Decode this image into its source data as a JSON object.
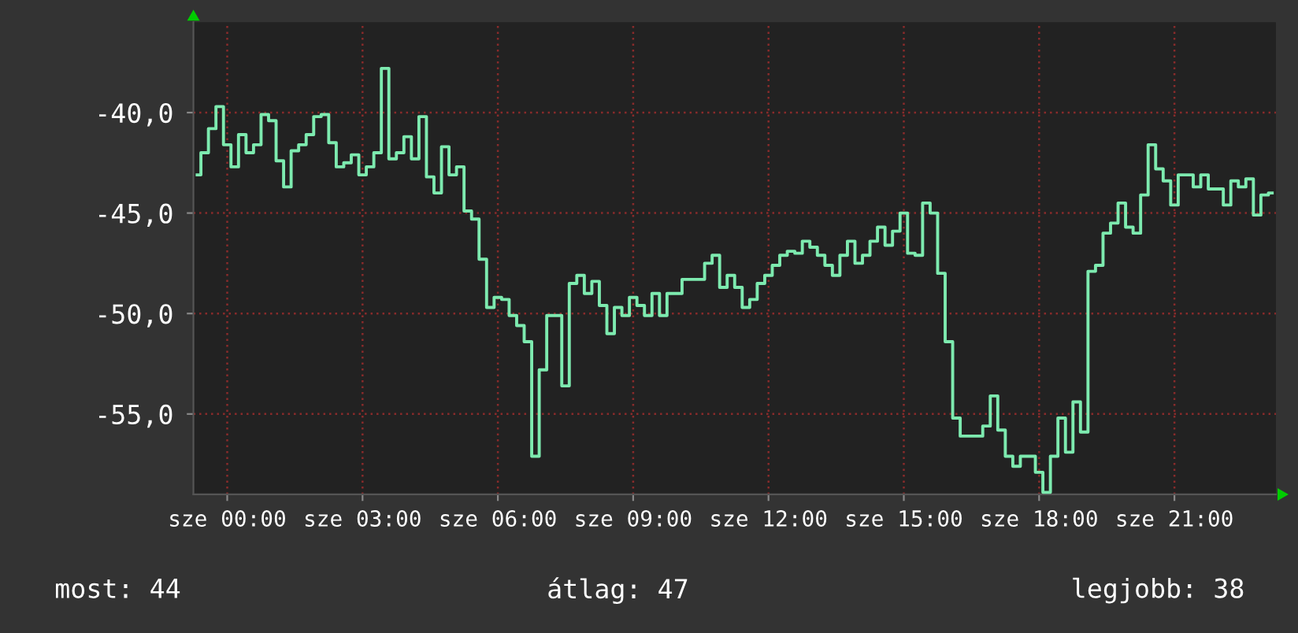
{
  "chart_data": {
    "type": "step",
    "categories": [
      null,
      null,
      null,
      null,
      "sze 00:00",
      null,
      null,
      null,
      null,
      null,
      null,
      null,
      null,
      null,
      null,
      null,
      null,
      null,
      null,
      null,
      null,
      null,
      "sze 03:00",
      null,
      null,
      null,
      null,
      null,
      null,
      null,
      null,
      null,
      null,
      null,
      null,
      null,
      null,
      null,
      null,
      null,
      "sze 06:00",
      null,
      null,
      null,
      null,
      null,
      null,
      null,
      null,
      null,
      null,
      null,
      null,
      null,
      null,
      null,
      null,
      null,
      "sze 09:00",
      null,
      null,
      null,
      null,
      null,
      null,
      null,
      null,
      null,
      null,
      null,
      null,
      null,
      null,
      null,
      null,
      null,
      "sze 12:00",
      null,
      null,
      null,
      null,
      null,
      null,
      null,
      null,
      null,
      null,
      null,
      null,
      null,
      null,
      null,
      null,
      null,
      "sze 15:00",
      null,
      null,
      null,
      null,
      null,
      null,
      null,
      null,
      null,
      null,
      null,
      null,
      null,
      null,
      null,
      null,
      null,
      "sze 18:00",
      null,
      null,
      null,
      null,
      null,
      null,
      null,
      null,
      null,
      null,
      null,
      null,
      null,
      null,
      null,
      null,
      null,
      "sze 21:00",
      null,
      null,
      null,
      null,
      null,
      null,
      null,
      null,
      null,
      null,
      null,
      null,
      null
    ],
    "series": [
      {
        "color": "#7deaaf",
        "values": [
          -43.1,
          -42.0,
          -40.8,
          -39.7,
          -41.6,
          -42.7,
          -41.1,
          -42.0,
          -41.6,
          -40.1,
          -40.4,
          -42.4,
          -43.7,
          -41.9,
          -41.6,
          -41.1,
          -40.2,
          -40.1,
          -41.5,
          -42.7,
          -42.5,
          -42.1,
          -43.1,
          -42.7,
          -42.0,
          -37.8,
          -42.3,
          -42.0,
          -41.2,
          -42.3,
          -40.2,
          -43.2,
          -44.0,
          -41.7,
          -43.1,
          -42.7,
          -44.9,
          -45.3,
          -47.3,
          -49.7,
          -49.2,
          -49.3,
          -50.1,
          -50.6,
          -51.4,
          -57.1,
          -52.8,
          -50.1,
          -50.1,
          -53.6,
          -48.5,
          -48.1,
          -49.0,
          -48.4,
          -49.6,
          -51.0,
          -49.7,
          -50.1,
          -49.2,
          -49.6,
          -50.1,
          -49.0,
          -50.1,
          -49.0,
          -49.0,
          -48.3,
          -48.3,
          -48.3,
          -47.5,
          -47.1,
          -48.7,
          -48.1,
          -48.7,
          -49.7,
          -49.3,
          -48.5,
          -48.1,
          -47.6,
          -47.1,
          -46.9,
          -47.0,
          -46.4,
          -46.7,
          -47.1,
          -47.6,
          -48.1,
          -47.1,
          -46.4,
          -47.5,
          -47.1,
          -46.4,
          -45.7,
          -46.6,
          -45.9,
          -45.0,
          -47.0,
          -47.1,
          -44.5,
          -45.0,
          -48.0,
          -51.4,
          -55.2,
          -56.1,
          -56.1,
          -56.1,
          -55.6,
          -54.1,
          -55.8,
          -57.1,
          -57.6,
          -57.1,
          -57.1,
          -57.9,
          -58.9,
          -57.1,
          -55.2,
          -56.9,
          -54.4,
          -55.9,
          -47.9,
          -47.6,
          -46.0,
          -45.5,
          -44.5,
          -45.7,
          -46.0,
          -44.1,
          -41.6,
          -42.8,
          -43.4,
          -44.6,
          -43.1,
          -43.1,
          -43.7,
          -43.1,
          -43.8,
          -43.8,
          -44.6,
          -43.4,
          -43.7,
          -43.3,
          -45.1,
          -44.1,
          -44.0
        ]
      }
    ],
    "ylim": [
      -59.0,
      -35.5
    ],
    "yticks": [
      {
        "value": -55,
        "label": "-55,0"
      },
      {
        "value": -50,
        "label": "-50,0"
      },
      {
        "value": -45,
        "label": "-45,0"
      },
      {
        "value": -40,
        "label": "-40,0"
      }
    ],
    "grid": true,
    "annotations": [
      "most: 44",
      "átlag: 47",
      "legjobb: 38"
    ]
  }
}
